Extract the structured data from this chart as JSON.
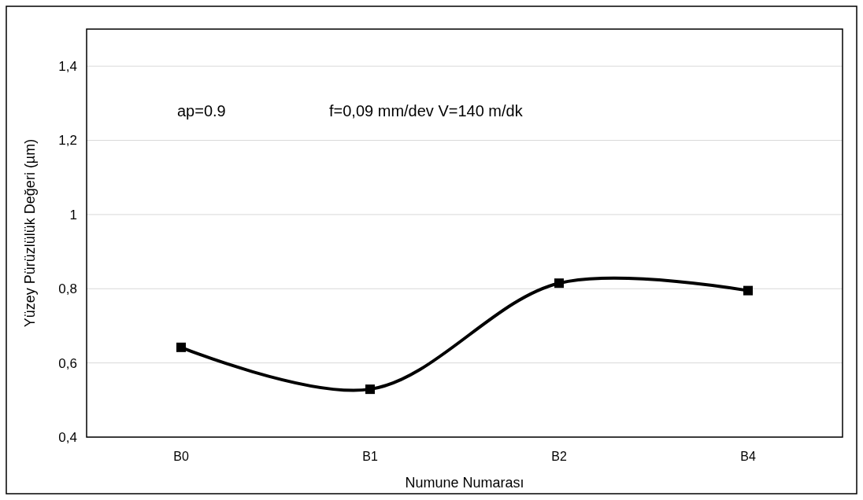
{
  "chart_data": {
    "type": "line",
    "xlabel": "Numune Numarası",
    "ylabel": "Yüzey Pürüzlülük Değeri (µm)",
    "categories": [
      "B0",
      "B1",
      "B2",
      "B4"
    ],
    "series": [
      {
        "color": "#000000",
        "values": [
          0.642,
          0.529,
          0.815,
          0.795
        ]
      }
    ],
    "ylim": [
      0.4,
      1.5
    ],
    "yticks": [
      {
        "value": 0.4,
        "label": "0,4"
      },
      {
        "value": 0.6,
        "label": "0,6"
      },
      {
        "value": 0.8,
        "label": "0,8"
      },
      1,
      {
        "value": 1.2,
        "label": "1,2"
      },
      {
        "value": 1.4,
        "label": "1,4"
      }
    ],
    "grid": "y",
    "marker": "square",
    "line_style": "solid",
    "annotations": [
      "ap=0.9",
      "f=0,09 mm/dev V=140 m/dk"
    ]
  }
}
